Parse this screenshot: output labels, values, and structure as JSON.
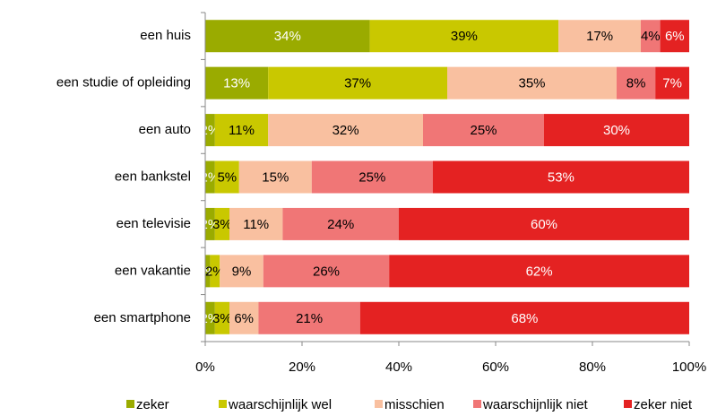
{
  "chart_data": {
    "type": "stacked-hbar",
    "categories": [
      "een huis",
      "een studie of opleiding",
      "een auto",
      "een bankstel",
      "een televisie",
      "een vakantie",
      "een smartphone"
    ],
    "series": [
      {
        "name": "zeker",
        "color": "#9aab00",
        "label_color": "#ffffff",
        "values": [
          34,
          13,
          2,
          2,
          2,
          1,
          2
        ],
        "value_labels": [
          "34%",
          "13%",
          "2%",
          "2%",
          "2%",
          "1%",
          "2%"
        ]
      },
      {
        "name": "waarschijnlijk wel",
        "color": "#c9c800",
        "label_color": "#000000",
        "values": [
          39,
          37,
          11,
          5,
          3,
          2,
          3
        ],
        "value_labels": [
          "39%",
          "37%",
          "11%",
          "5%",
          "3%",
          "2%",
          "3%"
        ]
      },
      {
        "name": "misschien",
        "color": "#f9c0a0",
        "label_color": "#000000",
        "values": [
          17,
          35,
          32,
          15,
          11,
          9,
          6
        ],
        "value_labels": [
          "17%",
          "35%",
          "32%",
          "15%",
          "11%",
          "9%",
          "6%"
        ]
      },
      {
        "name": "waarschijnlijk niet",
        "color": "#f07676",
        "label_color": "#000000",
        "values": [
          4,
          8,
          25,
          25,
          24,
          26,
          21
        ],
        "value_labels": [
          "4%",
          "8%",
          "25%",
          "25%",
          "24%",
          "26%",
          "21%"
        ]
      },
      {
        "name": "zeker niet",
        "color": "#e42222",
        "label_color": "#ffffff",
        "values": [
          6,
          7,
          30,
          53,
          60,
          62,
          68
        ],
        "value_labels": [
          "6%",
          "7%",
          "30%",
          "53%",
          "60%",
          "62%",
          "68%"
        ]
      }
    ],
    "xlim": [
      0,
      100
    ],
    "xticks": [
      {
        "value": 0,
        "label": "0%"
      },
      {
        "value": 20,
        "label": "20%"
      },
      {
        "value": 40,
        "label": "40%"
      },
      {
        "value": 60,
        "label": "60%"
      },
      {
        "value": 80,
        "label": "80%"
      },
      {
        "value": 100,
        "label": "100%"
      }
    ],
    "legend": "bottom"
  }
}
